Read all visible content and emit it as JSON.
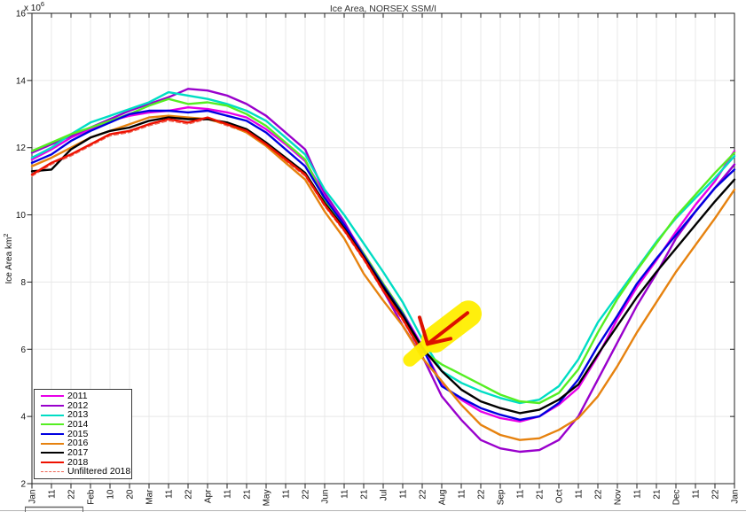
{
  "chart_data": {
    "type": "line",
    "title": "Ice Area, NORSEX SSM/I",
    "ylabel": "Ice Area km",
    "ylabel_sup": "2",
    "offset_label": "x 10",
    "offset_sup": "6",
    "ylim": [
      2,
      16
    ],
    "yticks": [
      2,
      4,
      6,
      8,
      10,
      12,
      14,
      16
    ],
    "grid": true,
    "legend_position": "lower-left",
    "x_tick_labels": [
      "Jan",
      "11",
      "22",
      "Feb",
      "10",
      "20",
      "Mar",
      "11",
      "22",
      "Apr",
      "11",
      "21",
      "May",
      "11",
      "22",
      "Jun",
      "11",
      "21",
      "Jul",
      "11",
      "22",
      "Aug",
      "11",
      "22",
      "Sep",
      "11",
      "21",
      "Oct",
      "11",
      "22",
      "Nov",
      "11",
      "21",
      "Dec",
      "11",
      "22",
      "Jan"
    ],
    "series": [
      {
        "name": "2011",
        "color": "#e800e8",
        "dash": false,
        "width": 2.4,
        "values": [
          11.65,
          11.95,
          12.3,
          12.55,
          12.8,
          12.95,
          13.05,
          13.1,
          13.2,
          13.15,
          13.05,
          12.9,
          12.55,
          12.1,
          11.6,
          10.6,
          9.75,
          8.85,
          7.95,
          7.1,
          6.1,
          4.95,
          4.5,
          4.15,
          3.95,
          3.85,
          4.0,
          4.35,
          4.85,
          5.8,
          6.9,
          7.85,
          8.65,
          9.5,
          10.3,
          11.0,
          11.9
        ]
      },
      {
        "name": "2012",
        "color": "#9900cc",
        "dash": false,
        "width": 2.4,
        "values": [
          11.85,
          12.1,
          12.35,
          12.6,
          12.85,
          13.1,
          13.3,
          13.5,
          13.75,
          13.7,
          13.55,
          13.3,
          12.95,
          12.45,
          11.95,
          10.65,
          9.8,
          8.75,
          7.75,
          6.7,
          5.8,
          4.6,
          3.9,
          3.3,
          3.05,
          2.95,
          3.0,
          3.3,
          4.0,
          5.1,
          6.2,
          7.3,
          8.25,
          9.3,
          10.1,
          10.8,
          11.5
        ]
      },
      {
        "name": "2013",
        "color": "#00ddc4",
        "dash": false,
        "width": 2.4,
        "values": [
          11.7,
          12.0,
          12.4,
          12.75,
          12.95,
          13.15,
          13.35,
          13.65,
          13.55,
          13.45,
          13.3,
          13.1,
          12.8,
          12.3,
          11.8,
          10.75,
          10.0,
          9.15,
          8.3,
          7.4,
          6.3,
          5.35,
          5.0,
          4.75,
          4.55,
          4.4,
          4.5,
          4.9,
          5.7,
          6.8,
          7.6,
          8.4,
          9.2,
          9.9,
          10.5,
          11.1,
          11.75
        ]
      },
      {
        "name": "2014",
        "color": "#55ee22",
        "dash": false,
        "width": 2.4,
        "values": [
          11.9,
          12.15,
          12.4,
          12.6,
          12.8,
          13.0,
          13.25,
          13.45,
          13.3,
          13.35,
          13.25,
          13.0,
          12.65,
          12.15,
          11.65,
          10.45,
          9.65,
          8.85,
          7.95,
          7.1,
          5.95,
          5.55,
          5.25,
          4.95,
          4.65,
          4.45,
          4.4,
          4.7,
          5.4,
          6.5,
          7.5,
          8.35,
          9.15,
          9.95,
          10.6,
          11.25,
          11.85
        ]
      },
      {
        "name": "2015",
        "color": "#0000e0",
        "dash": false,
        "width": 2.4,
        "values": [
          11.55,
          11.8,
          12.2,
          12.5,
          12.75,
          13.0,
          13.1,
          13.1,
          13.05,
          13.1,
          12.95,
          12.8,
          12.45,
          11.95,
          11.45,
          10.5,
          9.7,
          8.8,
          7.9,
          7.05,
          6.05,
          4.9,
          4.55,
          4.25,
          4.05,
          3.9,
          4.0,
          4.4,
          5.1,
          6.1,
          7.0,
          7.95,
          8.7,
          9.4,
          10.1,
          10.8,
          11.35
        ]
      },
      {
        "name": "2016",
        "color": "#e6820f",
        "dash": false,
        "width": 2.4,
        "values": [
          11.45,
          11.7,
          12.0,
          12.3,
          12.5,
          12.7,
          12.9,
          12.95,
          12.9,
          12.85,
          12.7,
          12.45,
          12.05,
          11.55,
          11.05,
          10.1,
          9.3,
          8.25,
          7.45,
          6.7,
          5.75,
          5.05,
          4.35,
          3.75,
          3.45,
          3.3,
          3.35,
          3.6,
          3.95,
          4.6,
          5.5,
          6.5,
          7.4,
          8.3,
          9.1,
          9.9,
          10.75
        ]
      },
      {
        "name": "2017",
        "color": "#000000",
        "dash": false,
        "width": 2.4,
        "values": [
          11.3,
          11.35,
          11.95,
          12.3,
          12.5,
          12.6,
          12.8,
          12.9,
          12.85,
          12.85,
          12.75,
          12.55,
          12.15,
          11.7,
          11.25,
          10.35,
          9.6,
          8.75,
          7.85,
          7.0,
          6.05,
          5.35,
          4.8,
          4.45,
          4.25,
          4.1,
          4.2,
          4.5,
          4.95,
          5.85,
          6.7,
          7.55,
          8.3,
          9.0,
          9.7,
          10.4,
          11.05
        ]
      },
      {
        "name": "2018",
        "color": "#ee1100",
        "dash": false,
        "width": 2.4,
        "values": [
          11.2,
          11.55,
          11.8,
          12.1,
          12.4,
          12.5,
          12.7,
          12.85,
          12.75,
          12.9,
          12.7,
          12.5,
          12.1,
          11.65,
          11.2,
          10.3,
          9.55,
          8.7,
          7.75,
          6.9,
          5.9,
          null,
          null,
          null,
          null,
          null,
          null,
          null,
          null,
          null,
          null,
          null,
          null,
          null,
          null,
          null,
          null
        ]
      },
      {
        "name": "Unfiltered 2018",
        "color": "#ee6655",
        "dash": true,
        "width": 1.2,
        "values": [
          11.15,
          11.5,
          11.75,
          12.05,
          12.35,
          12.45,
          12.65,
          12.8,
          12.7,
          12.85,
          12.65,
          12.45,
          12.05,
          11.6,
          11.15,
          10.25,
          9.5,
          8.65,
          7.7,
          6.85,
          5.85,
          null,
          null,
          null,
          null,
          null,
          null,
          null,
          null,
          null,
          null,
          null,
          null,
          null,
          null,
          null,
          null
        ]
      }
    ],
    "annotation": {
      "kind": "hand-drawn arrow with highlighter",
      "points_at_tick": 20,
      "points_at_value": 6.0,
      "highlight_color": "#ffee00",
      "arrow_color": "#dd1100"
    }
  }
}
